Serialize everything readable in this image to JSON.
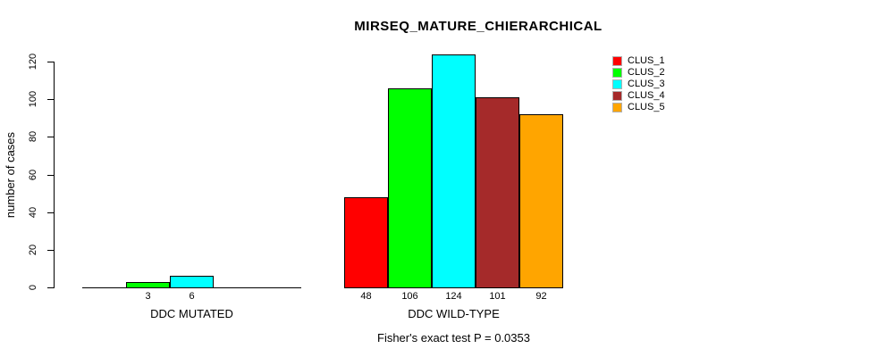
{
  "title": "MIRSEQ_MATURE_CHIERARCHICAL",
  "ylabel": "number of cases",
  "annotation": "Fisher's exact test P = 0.0353",
  "legend": {
    "items": [
      {
        "label": "CLUS_1",
        "color": "#FF0000"
      },
      {
        "label": "CLUS_2",
        "color": "#00FF00"
      },
      {
        "label": "CLUS_3",
        "color": "#00FFFF"
      },
      {
        "label": "CLUS_4",
        "color": "#A52A2A"
      },
      {
        "label": "CLUS_5",
        "color": "#FFA500"
      }
    ]
  },
  "chart_data": {
    "type": "bar",
    "title": "MIRSEQ_MATURE_CHIERARCHICAL",
    "xlabel": "",
    "ylabel": "number of cases",
    "ylim": [
      0,
      120
    ],
    "yticks": [
      0,
      20,
      40,
      60,
      80,
      100,
      120
    ],
    "grid": false,
    "legend_position": "top-right",
    "series": [
      {
        "name": "CLUS_1",
        "color": "#FF0000"
      },
      {
        "name": "CLUS_2",
        "color": "#00FF00"
      },
      {
        "name": "CLUS_3",
        "color": "#00FFFF"
      },
      {
        "name": "CLUS_4",
        "color": "#A52A2A"
      },
      {
        "name": "CLUS_5",
        "color": "#FFA500"
      }
    ],
    "groups": [
      {
        "label": "DDC MUTATED",
        "values": [
          0,
          3,
          6,
          0,
          0
        ]
      },
      {
        "label": "DDC WILD-TYPE",
        "values": [
          48,
          106,
          124,
          101,
          92
        ]
      }
    ],
    "bar_value_labels_shown_for_nonzero_only": true,
    "annotation": "Fisher's exact test P = 0.0353"
  }
}
